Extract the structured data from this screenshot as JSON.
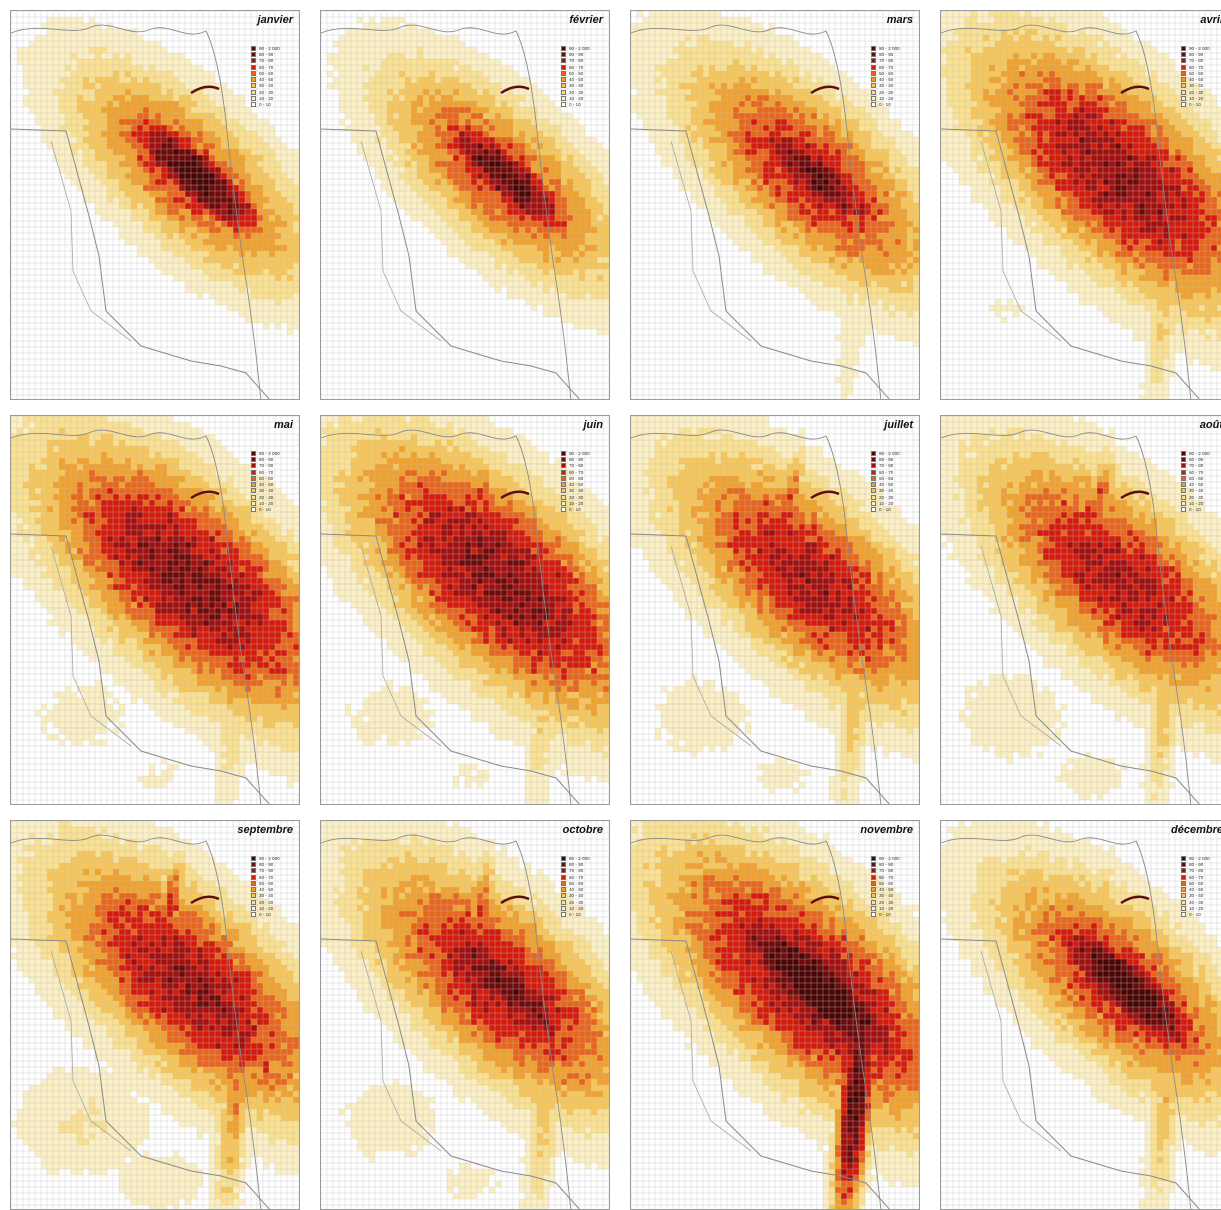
{
  "legend": {
    "classes": [
      {
        "label": "90 - 2 000",
        "color": "#4a0505"
      },
      {
        "label": "80 -   90",
        "color": "#6e0a0a"
      },
      {
        "label": "70 -   80",
        "color": "#a10f0f"
      },
      {
        "label": "60 -   70",
        "color": "#d41a0a"
      },
      {
        "label": "50 -   60",
        "color": "#e8651b"
      },
      {
        "label": "40 -   50",
        "color": "#f0a02c"
      },
      {
        "label": "30 -   40",
        "color": "#f7c659"
      },
      {
        "label": "20 -   30",
        "color": "#fae08f"
      },
      {
        "label": "10 -   20",
        "color": "#fcefc4"
      },
      {
        "label": "0 -   10",
        "color": "#ffffff"
      }
    ]
  },
  "months": [
    {
      "name": "janvier",
      "spread": 0.45,
      "core": 0.75,
      "south": 0.05,
      "west": 0.05,
      "sw": 0.0,
      "tail": 0.0,
      "north": 0.1
    },
    {
      "name": "février",
      "spread": 0.45,
      "core": 0.65,
      "south": 0.05,
      "west": 0.05,
      "sw": 0.0,
      "tail": 0.0,
      "north": 0.1
    },
    {
      "name": "mars",
      "spread": 0.55,
      "core": 0.55,
      "south": 0.2,
      "west": 0.15,
      "sw": 0.0,
      "tail": 0.1,
      "north": 0.1
    },
    {
      "name": "avril",
      "spread": 0.75,
      "core": 0.35,
      "south": 0.35,
      "west": 0.6,
      "sw": 0.35,
      "tail": 0.55,
      "north": 0.3
    },
    {
      "name": "mai",
      "spread": 0.8,
      "core": 0.35,
      "south": 0.3,
      "west": 0.7,
      "sw": 0.45,
      "tail": 0.6,
      "north": 0.5
    },
    {
      "name": "juin",
      "spread": 0.8,
      "core": 0.35,
      "south": 0.3,
      "west": 0.65,
      "sw": 0.45,
      "tail": 0.6,
      "north": 0.55
    },
    {
      "name": "juillet",
      "spread": 0.65,
      "core": 0.3,
      "south": 0.35,
      "west": 0.4,
      "sw": 0.5,
      "tail": 0.6,
      "north": 0.55
    },
    {
      "name": "août",
      "spread": 0.65,
      "core": 0.3,
      "south": 0.35,
      "west": 0.35,
      "sw": 0.55,
      "tail": 0.6,
      "north": 0.55
    },
    {
      "name": "septembre",
      "spread": 0.7,
      "core": 0.45,
      "south": 0.45,
      "west": 0.4,
      "sw": 0.75,
      "tail": 0.55,
      "north": 0.6
    },
    {
      "name": "octobre",
      "spread": 0.65,
      "core": 0.6,
      "south": 0.35,
      "west": 0.35,
      "sw": 0.5,
      "tail": 0.35,
      "north": 0.55
    },
    {
      "name": "novembre",
      "spread": 0.8,
      "core": 0.95,
      "south": 0.95,
      "west": 0.3,
      "sw": 0.0,
      "tail": 0.1,
      "north": 0.45
    },
    {
      "name": "décembre",
      "spread": 0.55,
      "core": 0.85,
      "south": 0.35,
      "west": 0.1,
      "sw": 0.0,
      "tail": 0.05,
      "north": 0.35
    }
  ]
}
